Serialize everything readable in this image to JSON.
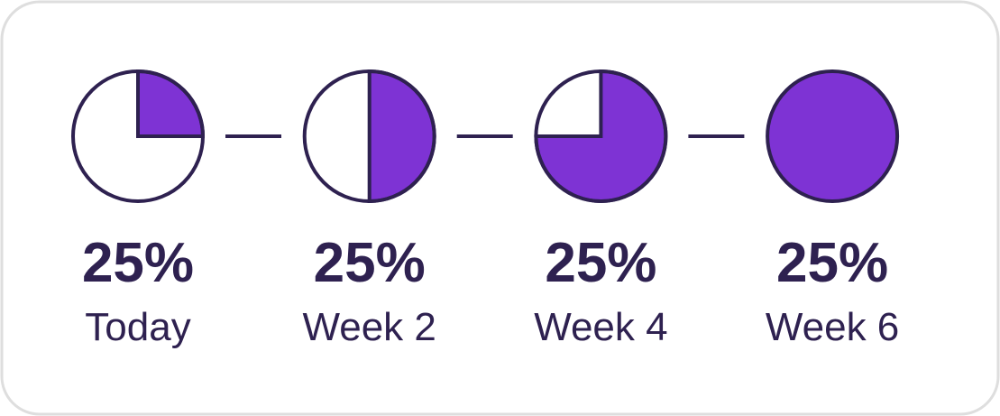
{
  "steps": [
    {
      "percent": "25%",
      "label": "Today",
      "fill": 25
    },
    {
      "percent": "25%",
      "label": "Week 2",
      "fill": 50
    },
    {
      "percent": "25%",
      "label": "Week 4",
      "fill": 75
    },
    {
      "percent": "25%",
      "label": "Week 6",
      "fill": 100
    }
  ]
}
